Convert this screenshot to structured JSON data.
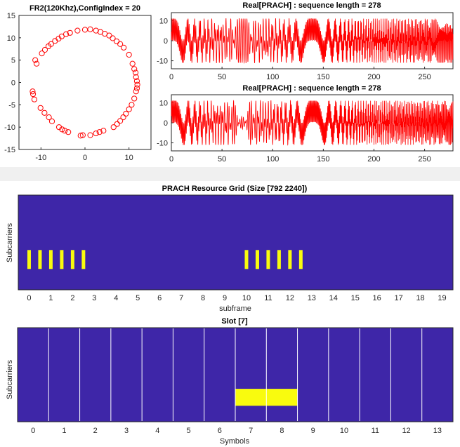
{
  "chart_data": [
    {
      "type": "scatter",
      "title": "FR2(120Khz),ConfigIndex = 20",
      "xlim": [
        -15,
        15
      ],
      "ylim": [
        -15,
        15
      ],
      "xticks": [
        "-10",
        "0",
        "10"
      ],
      "yticks": [
        "15",
        "10",
        "5",
        "0",
        "-5",
        "-10",
        "-15"
      ],
      "marker": "circle",
      "marker_color": "#ff0000",
      "points": [
        [
          0.0,
          11.8
        ],
        [
          1.2,
          11.9
        ],
        [
          2.5,
          11.6
        ],
        [
          3.5,
          11.3
        ],
        [
          4.5,
          10.9
        ],
        [
          5.5,
          10.5
        ],
        [
          6.3,
          9.9
        ],
        [
          7.2,
          9.2
        ],
        [
          8.0,
          8.6
        ],
        [
          8.8,
          7.8
        ],
        [
          10.0,
          6.2
        ],
        [
          10.8,
          4.2
        ],
        [
          11.2,
          3.0
        ],
        [
          11.5,
          2.2
        ],
        [
          11.6,
          1.2
        ],
        [
          11.8,
          0.3
        ],
        [
          11.9,
          -0.5
        ],
        [
          11.8,
          -1.3
        ],
        [
          11.6,
          -2.0
        ],
        [
          11.2,
          -3.6
        ],
        [
          10.6,
          -5.0
        ],
        [
          10.0,
          -6.0
        ],
        [
          9.3,
          -7.0
        ],
        [
          8.7,
          -7.8
        ],
        [
          8.0,
          -8.6
        ],
        [
          7.3,
          -9.3
        ],
        [
          6.5,
          -10.0
        ],
        [
          4.2,
          -10.8
        ],
        [
          3.3,
          -11.1
        ],
        [
          2.5,
          -11.4
        ],
        [
          1.2,
          -11.8
        ],
        [
          -0.5,
          -11.8
        ],
        [
          -1.0,
          -11.9
        ],
        [
          -3.8,
          -11.1
        ],
        [
          -4.6,
          -10.8
        ],
        [
          -5.2,
          -10.5
        ],
        [
          -5.9,
          -10.0
        ],
        [
          -7.5,
          -8.7
        ],
        [
          -8.2,
          -7.8
        ],
        [
          -9.2,
          -6.8
        ],
        [
          -10.1,
          -5.7
        ],
        [
          -11.5,
          -3.8
        ],
        [
          -11.8,
          -2.6
        ],
        [
          -11.9,
          -2.0
        ],
        [
          -11.0,
          4.2
        ],
        [
          -11.3,
          5.0
        ],
        [
          -9.8,
          6.5
        ],
        [
          -9.1,
          7.3
        ],
        [
          -8.3,
          8.1
        ],
        [
          -7.7,
          8.6
        ],
        [
          -6.8,
          9.3
        ],
        [
          -6.0,
          9.8
        ],
        [
          -5.3,
          10.3
        ],
        [
          -4.3,
          10.8
        ],
        [
          -3.4,
          11.1
        ],
        [
          -1.7,
          11.6
        ]
      ]
    },
    {
      "type": "line",
      "title": "Real[PRACH] : sequence length = 278",
      "xlim": [
        0,
        278
      ],
      "ylim": [
        -14,
        14
      ],
      "xticks": [
        "0",
        "50",
        "100",
        "150",
        "200",
        "250"
      ],
      "yticks": [
        "10",
        "0",
        "-10"
      ],
      "line_color": "#ff0000",
      "amplitude": 11,
      "chirp_pairs": [
        [
          0,
          2.1
        ],
        [
          139,
          2.15
        ]
      ]
    },
    {
      "type": "line",
      "title": "Real[PRACH] : sequence length = 278",
      "xlim": [
        0,
        278
      ],
      "ylim": [
        -14,
        14
      ],
      "xticks": [
        "0",
        "50",
        "100",
        "150",
        "200",
        "250"
      ],
      "yticks": [
        "10",
        "0",
        "-10"
      ],
      "line_color": "#ff0000",
      "amplitude": 11,
      "chirp_pairs": [
        [
          1.2,
          2.3
        ],
        [
          140,
          2.25
        ]
      ]
    },
    {
      "type": "heatmap",
      "title": "PRACH Resource Grid (Size [792 2240])",
      "xlabel": "subframe",
      "ylabel": "Subcarriers",
      "xlim": [
        0,
        20
      ],
      "xticks": [
        "0",
        "1",
        "2",
        "3",
        "4",
        "5",
        "6",
        "7",
        "8",
        "9",
        "10",
        "11",
        "12",
        "13",
        "14",
        "15",
        "16",
        "17",
        "18",
        "19"
      ],
      "background_color": "#3e26a8",
      "occupied_color": "#f9fb0e",
      "occupied_x_centers": [
        0.5,
        1.0,
        1.5,
        2.0,
        2.5,
        3.0,
        10.5,
        11.0,
        11.5,
        12.0,
        12.5,
        13.0
      ],
      "occupied_rows_fraction": [
        0.58,
        0.78
      ]
    },
    {
      "type": "heatmap",
      "title": "Slot [7]",
      "xlabel": "Symbols",
      "ylabel": "Subcarriers",
      "xlim": [
        -0.5,
        13.5
      ],
      "xticks": [
        "0",
        "1",
        "2",
        "3",
        "4",
        "5",
        "6",
        "7",
        "8",
        "9",
        "10",
        "11",
        "12",
        "13"
      ],
      "background_color": "#3e26a8",
      "occupied_color": "#f9fb0e",
      "symbol_boundaries": [
        0.5,
        1.5,
        2.5,
        3.5,
        4.5,
        5.5,
        6.5,
        7.5,
        8.5,
        9.5,
        10.5,
        11.5,
        12.5
      ],
      "occupied_symbols": [
        7,
        8
      ],
      "occupied_rows_fraction": [
        0.65,
        0.83
      ]
    }
  ]
}
